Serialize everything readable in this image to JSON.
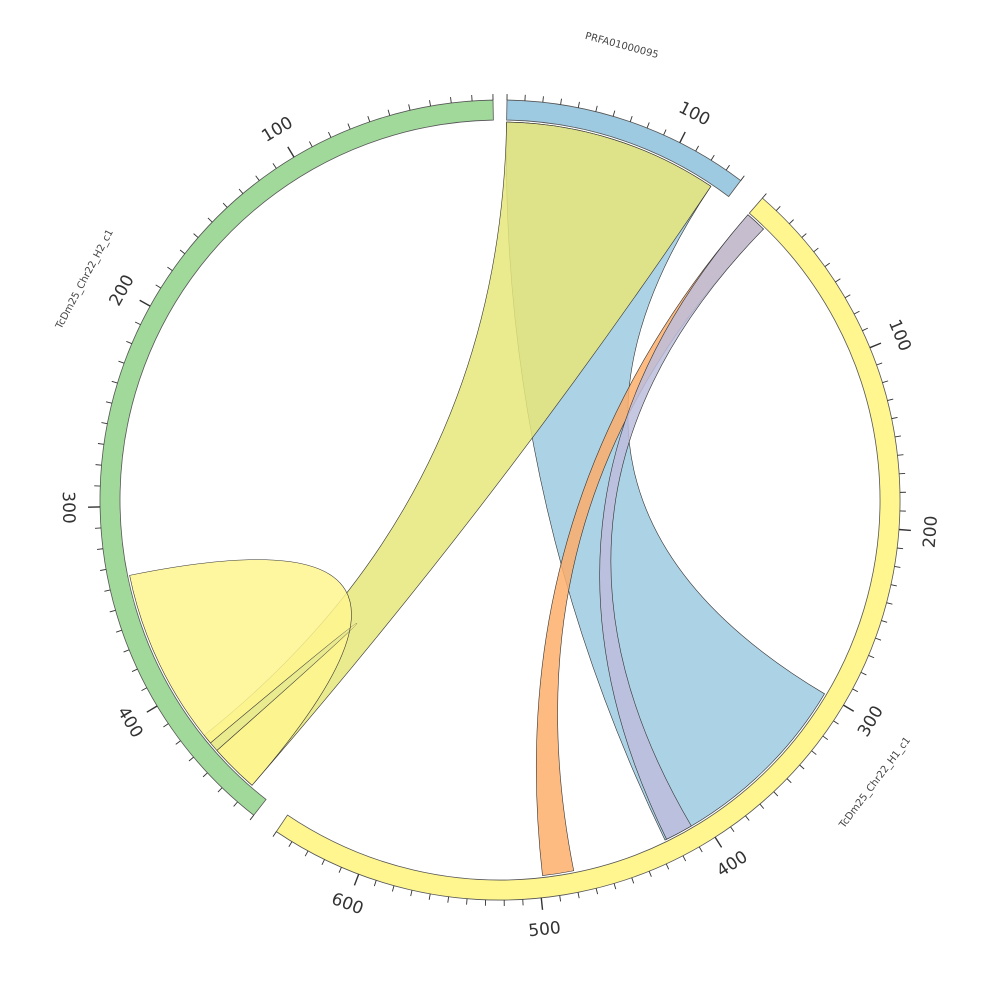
{
  "diagram": {
    "type": "chord",
    "colors": {
      "blue": "#9ecae1",
      "yellow": "#fff68f",
      "green": "#a1d99b",
      "orange": "#fdae6b",
      "purple": "#bcbddc",
      "stroke": "#555555"
    },
    "sequences": [
      {
        "id": "prfa",
        "name": "PRFA01000095",
        "length": 140,
        "color": "#9ecae1",
        "tick_labels": [
          "100"
        ]
      },
      {
        "id": "h1",
        "name": "TcDm25_Chr22_H1_c1",
        "length": 650,
        "color": "#fff68f",
        "tick_labels": [
          "100",
          "200",
          "300",
          "400",
          "500",
          "600"
        ]
      },
      {
        "id": "h2",
        "name": "TcDm25_Chr22_H2_c1",
        "length": 470,
        "color": "#a1d99b",
        "tick_labels": [
          "100",
          "200",
          "300",
          "400"
        ]
      }
    ],
    "links": [
      {
        "source": "prfa",
        "source_range": [
          0,
          128
        ],
        "target": "h1",
        "target_range": [
          300,
          425
        ],
        "color": "#9ecae1"
      },
      {
        "source": "h2",
        "source_range": [
          425,
          460
        ],
        "target": "prfa",
        "source_color": "#a1d99b",
        "target_range": [
          0,
          128
        ],
        "color": "#e6e67a"
      },
      {
        "source": "h2",
        "source_range": [
          335,
          430
        ],
        "target": "h2",
        "target_range": [
          435,
          460
        ],
        "color": "#fff68f"
      },
      {
        "source": "h1",
        "source_range": [
          0,
          12
        ],
        "target": "h1",
        "target_range": [
          480,
          498
        ],
        "color": "#fdae6b"
      },
      {
        "source": "h1",
        "source_range": [
          0,
          12
        ],
        "target": "h1",
        "target_range": [
          408,
          424
        ],
        "color": "#bcbddc"
      }
    ]
  }
}
